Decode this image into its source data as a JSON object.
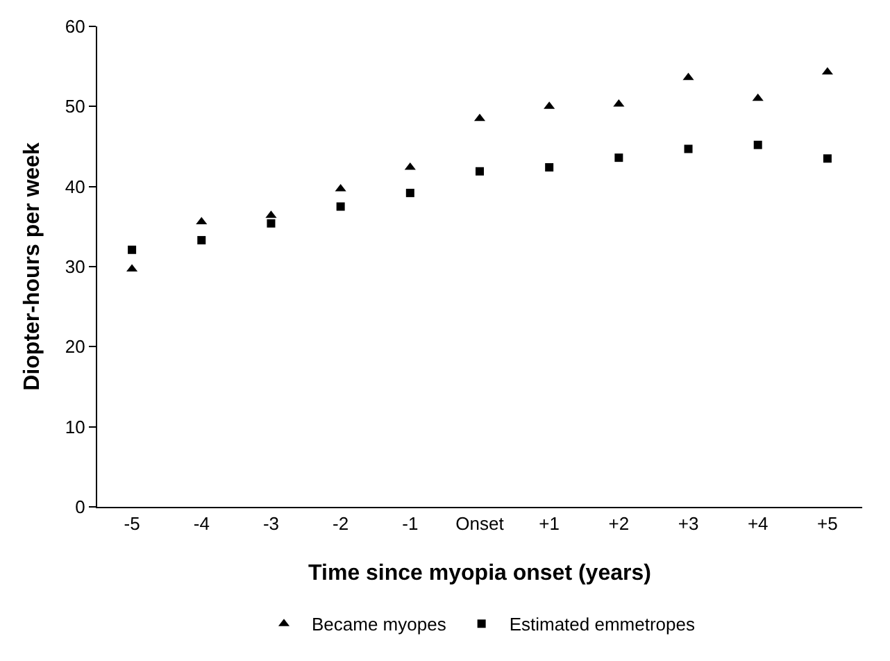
{
  "chart_data": {
    "type": "scatter",
    "xlabel": "Time since myopia onset (years)",
    "ylabel": "Diopter-hours per week",
    "categories": [
      "-5",
      "-4",
      "-3",
      "-2",
      "-1",
      "Onset",
      "+1",
      "+2",
      "+3",
      "+4",
      "+5"
    ],
    "series": [
      {
        "name": "Became myopes",
        "color": "#000000",
        "marker": "triangle",
        "values": [
          29.7,
          35.6,
          36.4,
          39.7,
          42.4,
          48.5,
          50.0,
          50.3,
          53.6,
          51.0,
          54.3
        ]
      },
      {
        "name": "Estimated emmetropes",
        "color": "#000000",
        "marker": "square",
        "values": [
          32.1,
          33.3,
          35.4,
          37.5,
          39.2,
          41.9,
          42.4,
          43.6,
          44.7,
          45.2,
          43.5
        ]
      }
    ],
    "ylim": [
      0,
      60
    ],
    "yticks": [
      0,
      10,
      20,
      30,
      40,
      50,
      60
    ],
    "grid": false,
    "legend": "bottom"
  }
}
